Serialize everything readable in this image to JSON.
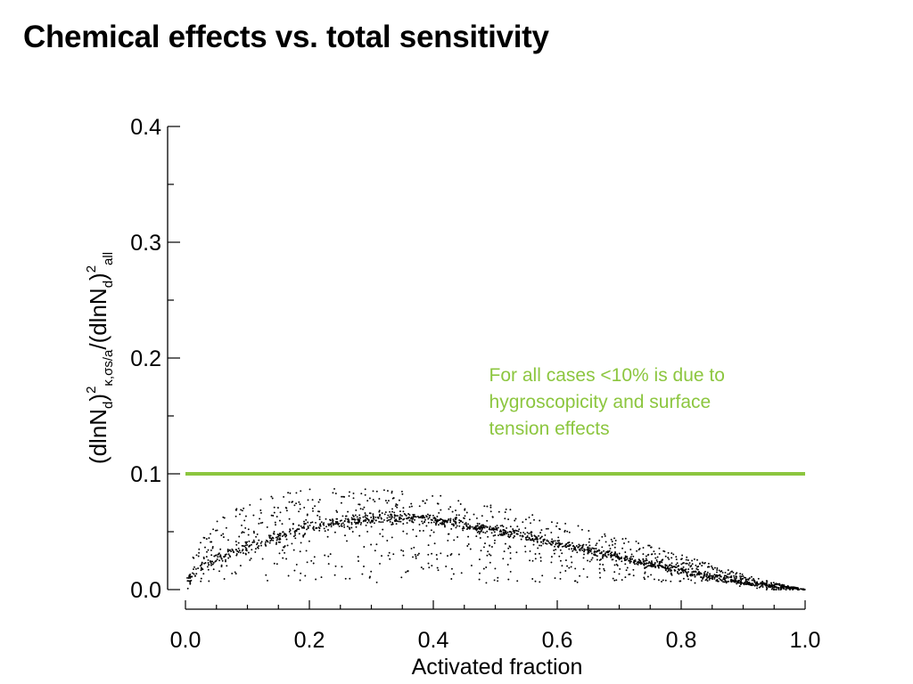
{
  "page": {
    "title": "Chemical effects vs. total sensitivity"
  },
  "colors": {
    "axis": "#000000",
    "points": "#000000",
    "reference_line": "#8cc63f",
    "annotation": "#8cc63f"
  },
  "chart_data": {
    "type": "scatter",
    "title": "Chemical effects vs. total sensitivity",
    "xlabel": "Activated fraction",
    "ylabel": {
      "parts": [
        {
          "text": "(dlnN",
          "style": "normal"
        },
        {
          "text": "d",
          "style": "sub"
        },
        {
          "text": ")",
          "style": "normal"
        },
        {
          "text": "2",
          "style": "sup"
        },
        {
          "text": "κ,σs/a",
          "style": "sub"
        },
        {
          "text": "/(dlnN",
          "style": "normal"
        },
        {
          "text": "d",
          "style": "sub"
        },
        {
          "text": ")",
          "style": "normal"
        },
        {
          "text": "2",
          "style": "sup"
        },
        {
          "text": "all",
          "style": "sub"
        }
      ]
    },
    "xlim": [
      0.0,
      1.0
    ],
    "ylim": [
      0.0,
      0.4
    ],
    "x_ticks": [
      "0.0",
      "0.2",
      "0.4",
      "0.6",
      "0.8",
      "1.0"
    ],
    "y_ticks": [
      "0.0",
      "0.1",
      "0.2",
      "0.3",
      "0.4"
    ],
    "x_major_step": 0.2,
    "x_minor_step": 0.05,
    "y_major_step": 0.1,
    "y_minor_step": 0.05,
    "grid": false,
    "reference_line": {
      "y": 0.1,
      "x_start": 0.0,
      "x_end": 1.0
    },
    "annotation": {
      "lines": [
        "For all cases <10% is due to",
        "hygroscopicity and surface",
        "tension effects"
      ],
      "x": 0.49,
      "y": 0.18
    },
    "series": [
      {
        "kind": "dense_trend",
        "points": [
          [
            0.0,
            0.003
          ],
          [
            0.01,
            0.012
          ],
          [
            0.02,
            0.017
          ],
          [
            0.03,
            0.021
          ],
          [
            0.05,
            0.026
          ],
          [
            0.07,
            0.031
          ],
          [
            0.1,
            0.037
          ],
          [
            0.13,
            0.042
          ],
          [
            0.16,
            0.047
          ],
          [
            0.2,
            0.053
          ],
          [
            0.25,
            0.058
          ],
          [
            0.3,
            0.061
          ],
          [
            0.35,
            0.062
          ],
          [
            0.4,
            0.06
          ],
          [
            0.45,
            0.056
          ],
          [
            0.5,
            0.051
          ],
          [
            0.55,
            0.046
          ],
          [
            0.6,
            0.04
          ],
          [
            0.65,
            0.034
          ],
          [
            0.7,
            0.028
          ],
          [
            0.75,
            0.022
          ],
          [
            0.8,
            0.016
          ],
          [
            0.85,
            0.011
          ],
          [
            0.9,
            0.006
          ],
          [
            0.95,
            0.002
          ],
          [
            1.0,
            0.0
          ]
        ]
      },
      {
        "kind": "upper_envelope",
        "points": [
          [
            0.0,
            0.01
          ],
          [
            0.02,
            0.04
          ],
          [
            0.05,
            0.06
          ],
          [
            0.1,
            0.075
          ],
          [
            0.15,
            0.083
          ],
          [
            0.2,
            0.087
          ],
          [
            0.25,
            0.088
          ],
          [
            0.3,
            0.087
          ],
          [
            0.35,
            0.085
          ],
          [
            0.4,
            0.082
          ],
          [
            0.45,
            0.078
          ],
          [
            0.5,
            0.073
          ],
          [
            0.55,
            0.067
          ],
          [
            0.6,
            0.06
          ],
          [
            0.65,
            0.053
          ],
          [
            0.7,
            0.046
          ],
          [
            0.75,
            0.038
          ],
          [
            0.8,
            0.03
          ],
          [
            0.85,
            0.022
          ],
          [
            0.9,
            0.013
          ],
          [
            0.95,
            0.006
          ],
          [
            1.0,
            0.0
          ]
        ]
      },
      {
        "kind": "lower_bound",
        "y": 0.005
      }
    ]
  }
}
